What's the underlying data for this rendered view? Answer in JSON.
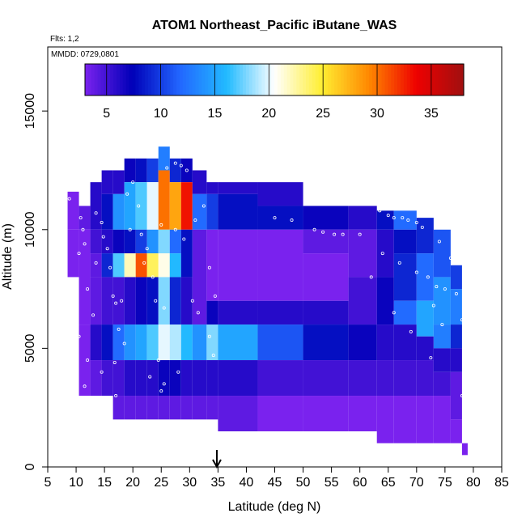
{
  "chart_data": {
    "type": "heatmap",
    "title": "ATOM1 Northeast_Pacific iButane_WAS",
    "subtitle_flights": "Flts: 1,2",
    "subtitle_dates": "MMDD: 0729,0801",
    "xlabel": "Latitude (deg N)",
    "ylabel": "Altitude (m)",
    "xlim": [
      5,
      85
    ],
    "ylim": [
      0,
      17700
    ],
    "x_ticks": [
      5,
      10,
      15,
      20,
      25,
      30,
      35,
      40,
      45,
      50,
      55,
      60,
      65,
      70,
      75,
      80,
      85
    ],
    "y_ticks": [
      0,
      5000,
      10000,
      15000
    ],
    "colorbar": {
      "range": [
        3,
        38
      ],
      "ticks": [
        5,
        10,
        15,
        20,
        25,
        30,
        35
      ],
      "colors": [
        "#7a22ee",
        "#0000b8",
        "#2266ff",
        "#22bbff",
        "#ffffff",
        "#ffee33",
        "#ff8800",
        "#ee0000",
        "#a01010"
      ]
    },
    "marker": {
      "latitude": 34.8,
      "label": "arrow"
    },
    "cells": [
      [
        8.5,
        10.5,
        10000,
        11600,
        3
      ],
      [
        8.5,
        10.5,
        8000,
        10000,
        3
      ],
      [
        10.5,
        12.5,
        10000,
        11000,
        4
      ],
      [
        10.5,
        12.5,
        6000,
        10000,
        3
      ],
      [
        10.5,
        12.5,
        3000,
        6000,
        3
      ],
      [
        12.5,
        14.5,
        10000,
        12000,
        6
      ],
      [
        12.5,
        14.5,
        9000,
        10000,
        5
      ],
      [
        12.5,
        14.5,
        8000,
        9000,
        4
      ],
      [
        12.5,
        14.5,
        6000,
        8000,
        4
      ],
      [
        12.5,
        14.5,
        4500,
        6000,
        6
      ],
      [
        12.5,
        14.5,
        3000,
        4500,
        4
      ],
      [
        14.5,
        16.5,
        11500,
        12500,
        6
      ],
      [
        14.5,
        16.5,
        10000,
        11500,
        8
      ],
      [
        14.5,
        16.5,
        9000,
        10000,
        6
      ],
      [
        14.5,
        16.5,
        8000,
        9000,
        9
      ],
      [
        14.5,
        16.5,
        6000,
        8000,
        5
      ],
      [
        14.5,
        16.5,
        4500,
        6000,
        8
      ],
      [
        14.5,
        16.5,
        3000,
        4500,
        5
      ],
      [
        16.5,
        18.5,
        11500,
        12500,
        6
      ],
      [
        16.5,
        18.5,
        10000,
        11500,
        14
      ],
      [
        16.5,
        18.5,
        9000,
        10000,
        7
      ],
      [
        16.5,
        18.5,
        8000,
        9000,
        17
      ],
      [
        16.5,
        18.5,
        6000,
        8000,
        5
      ],
      [
        16.5,
        18.5,
        4500,
        6000,
        12
      ],
      [
        16.5,
        18.5,
        3000,
        4500,
        5
      ],
      [
        16.5,
        18.5,
        2000,
        3000,
        4
      ],
      [
        18.5,
        20.5,
        12000,
        13000,
        7
      ],
      [
        18.5,
        20.5,
        10000,
        12000,
        15
      ],
      [
        18.5,
        20.5,
        9000,
        10000,
        8
      ],
      [
        18.5,
        20.5,
        8000,
        9000,
        22
      ],
      [
        18.5,
        20.5,
        6000,
        8000,
        6
      ],
      [
        18.5,
        20.5,
        4500,
        6000,
        14
      ],
      [
        18.5,
        20.5,
        3000,
        4500,
        6
      ],
      [
        18.5,
        20.5,
        2000,
        3000,
        4
      ],
      [
        20.5,
        22.5,
        12000,
        13000,
        8
      ],
      [
        20.5,
        22.5,
        10000,
        12000,
        17
      ],
      [
        20.5,
        22.5,
        9000,
        10000,
        10
      ],
      [
        20.5,
        22.5,
        8000,
        9000,
        31
      ],
      [
        20.5,
        22.5,
        6000,
        8000,
        7
      ],
      [
        20.5,
        22.5,
        4500,
        6000,
        15
      ],
      [
        20.5,
        22.5,
        3000,
        4500,
        6
      ],
      [
        20.5,
        22.5,
        2000,
        3000,
        4
      ],
      [
        22.5,
        24.5,
        12000,
        13000,
        10
      ],
      [
        22.5,
        24.5,
        10000,
        12000,
        20
      ],
      [
        22.5,
        24.5,
        9000,
        10000,
        14
      ],
      [
        22.5,
        24.5,
        8000,
        9000,
        24
      ],
      [
        22.5,
        24.5,
        6000,
        8000,
        8
      ],
      [
        22.5,
        24.5,
        4500,
        6000,
        17
      ],
      [
        22.5,
        24.5,
        3000,
        4500,
        6
      ],
      [
        22.5,
        24.5,
        2000,
        3000,
        4
      ],
      [
        24.5,
        26.5,
        12500,
        13500,
        13
      ],
      [
        24.5,
        26.5,
        10000,
        12500,
        30
      ],
      [
        24.5,
        26.5,
        9000,
        10000,
        18
      ],
      [
        24.5,
        26.5,
        8000,
        9000,
        21
      ],
      [
        24.5,
        26.5,
        6000,
        8000,
        18
      ],
      [
        24.5,
        26.5,
        4500,
        6000,
        20
      ],
      [
        24.5,
        26.5,
        3000,
        4500,
        7
      ],
      [
        24.5,
        26.5,
        2000,
        3000,
        4
      ],
      [
        26.5,
        28.5,
        12000,
        13000,
        9
      ],
      [
        26.5,
        28.5,
        10000,
        12000,
        28
      ],
      [
        26.5,
        28.5,
        9000,
        10000,
        12
      ],
      [
        26.5,
        28.5,
        8000,
        9000,
        16
      ],
      [
        26.5,
        28.5,
        6000,
        8000,
        9
      ],
      [
        26.5,
        28.5,
        4500,
        6000,
        19
      ],
      [
        26.5,
        28.5,
        3000,
        4500,
        7
      ],
      [
        26.5,
        28.5,
        2000,
        3000,
        4
      ],
      [
        28.5,
        30.5,
        12000,
        13000,
        7
      ],
      [
        28.5,
        30.5,
        10000,
        12000,
        33
      ],
      [
        28.5,
        30.5,
        8000,
        10000,
        8
      ],
      [
        28.5,
        30.5,
        6000,
        8000,
        6
      ],
      [
        28.5,
        30.5,
        4500,
        6000,
        16
      ],
      [
        28.5,
        30.5,
        3000,
        4500,
        6
      ],
      [
        28.5,
        30.5,
        2000,
        3000,
        4
      ],
      [
        30.5,
        33,
        11500,
        12500,
        6
      ],
      [
        30.5,
        33,
        10000,
        11500,
        12
      ],
      [
        30.5,
        33,
        6000,
        10000,
        4
      ],
      [
        30.5,
        33,
        4500,
        6000,
        14
      ],
      [
        30.5,
        33,
        3000,
        4500,
        6
      ],
      [
        30.5,
        33,
        2000,
        3000,
        4
      ],
      [
        33,
        35,
        11500,
        12000,
        6
      ],
      [
        33,
        35,
        10000,
        11500,
        10
      ],
      [
        33,
        35,
        7000,
        10000,
        3
      ],
      [
        33,
        35,
        6000,
        7000,
        7
      ],
      [
        33,
        35,
        4500,
        6000,
        18
      ],
      [
        33,
        35,
        3000,
        4500,
        6
      ],
      [
        33,
        35,
        2000,
        3000,
        4
      ],
      [
        35,
        42,
        11500,
        12000,
        6
      ],
      [
        35,
        42,
        10000,
        11500,
        8
      ],
      [
        35,
        42,
        7000,
        10000,
        3
      ],
      [
        35,
        42,
        6000,
        7000,
        6
      ],
      [
        35,
        42,
        4500,
        6000,
        15
      ],
      [
        35,
        42,
        3000,
        4500,
        6
      ],
      [
        35,
        42,
        1500,
        3000,
        4
      ],
      [
        42,
        50,
        11000,
        12000,
        6
      ],
      [
        42,
        50,
        10000,
        11000,
        8
      ],
      [
        42,
        50,
        7000,
        10000,
        3
      ],
      [
        42,
        50,
        6000,
        7000,
        6
      ],
      [
        42,
        50,
        4500,
        6000,
        11
      ],
      [
        42,
        50,
        3000,
        4500,
        5
      ],
      [
        42,
        50,
        1500,
        3000,
        3
      ],
      [
        50,
        58,
        10000,
        11000,
        7
      ],
      [
        50,
        58,
        9000,
        10000,
        4
      ],
      [
        50,
        58,
        7000,
        9000,
        3
      ],
      [
        50,
        58,
        6000,
        7000,
        6
      ],
      [
        50,
        58,
        4500,
        6000,
        8
      ],
      [
        50,
        58,
        3000,
        4500,
        5
      ],
      [
        50,
        58,
        1500,
        3000,
        3
      ],
      [
        58,
        63,
        10000,
        11000,
        6
      ],
      [
        58,
        63,
        8000,
        10000,
        4
      ],
      [
        58,
        63,
        6000,
        8000,
        5
      ],
      [
        58,
        63,
        4500,
        6000,
        7
      ],
      [
        58,
        63,
        3000,
        4500,
        5
      ],
      [
        58,
        63,
        1500,
        3000,
        3
      ],
      [
        63,
        66,
        10000,
        10800,
        8
      ],
      [
        63,
        66,
        8000,
        10000,
        6
      ],
      [
        63,
        66,
        6000,
        8000,
        7
      ],
      [
        63,
        66,
        4500,
        6000,
        6
      ],
      [
        63,
        66,
        3000,
        4500,
        5
      ],
      [
        63,
        66,
        1000,
        3000,
        3
      ],
      [
        66,
        70,
        10000,
        10800,
        12
      ],
      [
        66,
        70,
        9000,
        10000,
        8
      ],
      [
        66,
        70,
        7000,
        9000,
        9
      ],
      [
        66,
        70,
        6000,
        7000,
        12
      ],
      [
        66,
        70,
        4500,
        6000,
        6
      ],
      [
        66,
        70,
        3000,
        4500,
        5
      ],
      [
        66,
        70,
        1000,
        3000,
        3
      ],
      [
        70,
        73,
        9000,
        10500,
        9
      ],
      [
        70,
        73,
        7000,
        9000,
        12
      ],
      [
        70,
        73,
        5500,
        7000,
        15
      ],
      [
        70,
        73,
        4500,
        5500,
        6
      ],
      [
        70,
        73,
        3000,
        4500,
        5
      ],
      [
        70,
        73,
        1000,
        3000,
        3
      ],
      [
        73,
        76,
        8000,
        10000,
        11
      ],
      [
        73,
        76,
        6000,
        8000,
        14
      ],
      [
        73,
        76,
        5000,
        6000,
        13
      ],
      [
        73,
        76,
        4000,
        5000,
        6
      ],
      [
        73,
        76,
        3000,
        4000,
        5
      ],
      [
        73,
        76,
        1000,
        3000,
        3
      ],
      [
        76,
        78,
        7500,
        8500,
        10
      ],
      [
        76,
        78,
        6000,
        7500,
        13
      ],
      [
        76,
        78,
        5000,
        6000,
        9
      ],
      [
        76,
        78,
        4000,
        5000,
        6
      ],
      [
        76,
        78,
        2000,
        4000,
        4
      ],
      [
        76,
        78,
        1000,
        2000,
        3
      ],
      [
        78,
        79,
        500,
        1000,
        3
      ]
    ],
    "samples": [
      [
        8.8,
        11300
      ],
      [
        10.8,
        10500
      ],
      [
        11.2,
        10000
      ],
      [
        11.5,
        9400
      ],
      [
        10.5,
        9000
      ],
      [
        12,
        7500
      ],
      [
        13,
        6400
      ],
      [
        10.5,
        5500
      ],
      [
        12,
        4500
      ],
      [
        14.5,
        4000
      ],
      [
        11.5,
        3400
      ],
      [
        13.5,
        10700
      ],
      [
        14.5,
        10300
      ],
      [
        14.8,
        9700
      ],
      [
        15.5,
        9200
      ],
      [
        13.5,
        8600
      ],
      [
        16,
        8400
      ],
      [
        16.5,
        7200
      ],
      [
        18,
        7000
      ],
      [
        17,
        6900
      ],
      [
        17.5,
        5800
      ],
      [
        18.5,
        5200
      ],
      [
        16.8,
        4400
      ],
      [
        17,
        3000
      ],
      [
        19,
        11500
      ],
      [
        20,
        12000
      ],
      [
        21,
        11000
      ],
      [
        19.5,
        10000
      ],
      [
        21.5,
        9800
      ],
      [
        22.5,
        9200
      ],
      [
        22,
        8600
      ],
      [
        23.5,
        8000
      ],
      [
        24,
        7000
      ],
      [
        25.5,
        6700
      ],
      [
        26,
        12600
      ],
      [
        27.5,
        12800
      ],
      [
        28.5,
        12700
      ],
      [
        29.5,
        12500
      ],
      [
        25,
        10200
      ],
      [
        27.5,
        10000
      ],
      [
        29,
        9600
      ],
      [
        31,
        10400
      ],
      [
        32.5,
        11000
      ],
      [
        30.5,
        7000
      ],
      [
        31.5,
        6500
      ],
      [
        24.5,
        4500
      ],
      [
        25.5,
        3500
      ],
      [
        25,
        3200
      ],
      [
        28,
        4000
      ],
      [
        33.5,
        8400
      ],
      [
        34.5,
        7200
      ],
      [
        33.5,
        5500
      ],
      [
        34.2,
        4700
      ],
      [
        23,
        3800
      ],
      [
        45,
        10500
      ],
      [
        48,
        10400
      ],
      [
        52,
        10000
      ],
      [
        53.5,
        9900
      ],
      [
        55.5,
        9800
      ],
      [
        57,
        9800
      ],
      [
        60,
        9800
      ],
      [
        63.5,
        10800
      ],
      [
        65,
        10600
      ],
      [
        66,
        10500
      ],
      [
        67.5,
        10500
      ],
      [
        68.5,
        10400
      ],
      [
        70,
        10300
      ],
      [
        71,
        10100
      ],
      [
        64,
        9000
      ],
      [
        67,
        8600
      ],
      [
        70,
        8200
      ],
      [
        72,
        8000
      ],
      [
        73.5,
        7600
      ],
      [
        75,
        7500
      ],
      [
        77,
        7300
      ],
      [
        78,
        6200
      ],
      [
        74.5,
        6000
      ],
      [
        69,
        5700
      ],
      [
        72.5,
        4600
      ],
      [
        78,
        3000
      ],
      [
        76,
        8800
      ],
      [
        74,
        9500
      ],
      [
        62,
        8000
      ],
      [
        66,
        6500
      ],
      [
        73,
        6800
      ]
    ]
  }
}
